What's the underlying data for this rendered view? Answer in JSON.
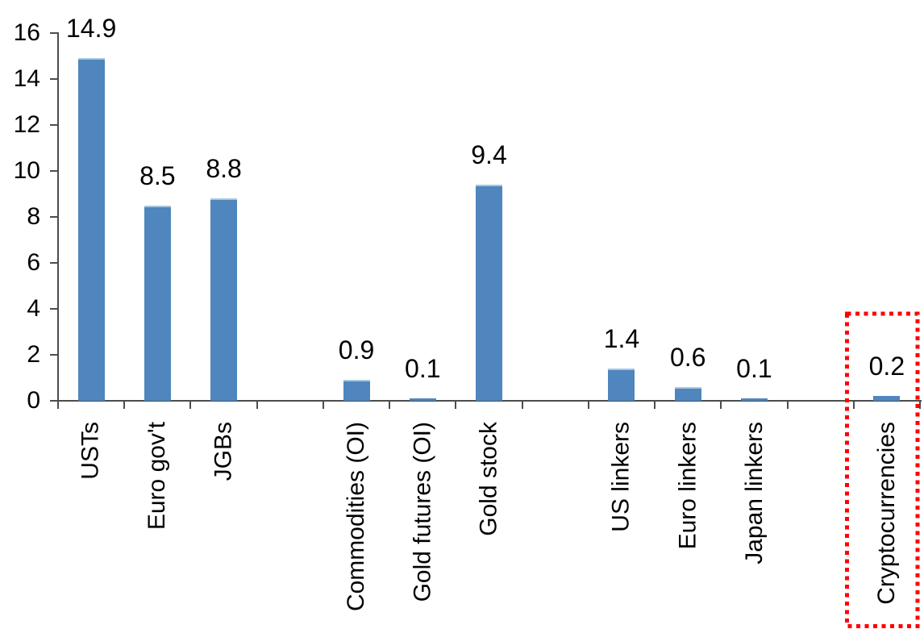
{
  "chart_data": {
    "type": "bar",
    "title": "",
    "xlabel": "",
    "ylabel": "",
    "categories": [
      "USTs",
      "Euro gov't",
      "JGBs",
      "Commodities (OI)",
      "Gold futures (OI)",
      "Gold stock",
      "US linkers",
      "Euro linkers",
      "Japan linkers",
      "Cryptocurrencies"
    ],
    "values": [
      14.9,
      8.5,
      8.8,
      0.9,
      0.1,
      9.4,
      1.4,
      0.6,
      0.1,
      0.2
    ],
    "value_labels": [
      "14.9",
      "8.5",
      "8.8",
      "0.9",
      "0.1",
      "9.4",
      "1.4",
      "0.6",
      "0.1",
      "0.2"
    ],
    "category_slots": [
      0,
      1,
      2,
      4,
      5,
      6,
      8,
      9,
      10,
      12
    ],
    "total_slots": 13,
    "y_axis": {
      "min": 0,
      "max": 16,
      "step": 2,
      "tick_labels": [
        "0",
        "2",
        "4",
        "6",
        "8",
        "10",
        "12",
        "14",
        "16"
      ]
    },
    "gridlines": false,
    "legend": null,
    "colors": {
      "bar_fill": "#4E86BD",
      "bar_top_edge": "#A9C6E0",
      "axis": "#4d4d4d",
      "text": "#000000"
    },
    "highlight": {
      "category": "Cryptocurrencies",
      "style": "red-dotted-box",
      "color": "#FF0000"
    }
  }
}
